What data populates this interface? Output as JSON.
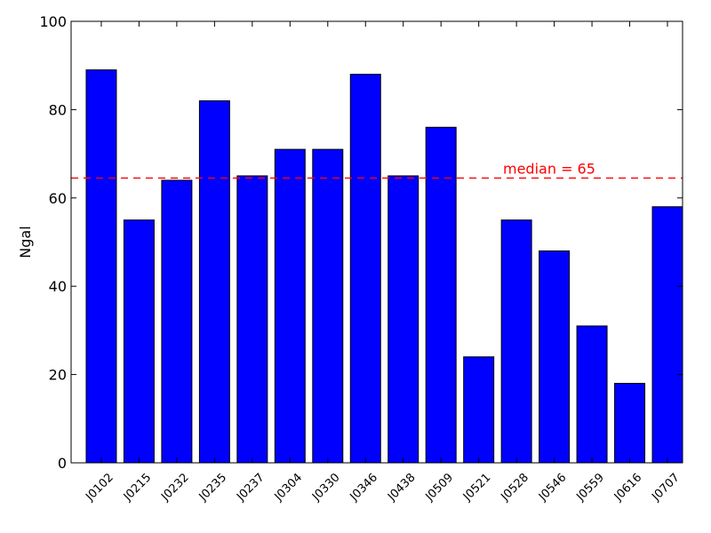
{
  "chart_data": {
    "type": "bar",
    "title": "",
    "xlabel": "",
    "ylabel": "Ngal",
    "ylim": [
      0,
      100
    ],
    "yticks": [
      0,
      20,
      40,
      60,
      80,
      100
    ],
    "categories": [
      "J0102",
      "J0215",
      "J0232",
      "J0235",
      "J0237",
      "J0304",
      "J0330",
      "J0346",
      "J0438",
      "J0509",
      "J0521",
      "J0528",
      "J0546",
      "J0559",
      "J0616",
      "J0707"
    ],
    "values": [
      89,
      55,
      64,
      82,
      65,
      71,
      71,
      88,
      65,
      76,
      24,
      55,
      48,
      31,
      18,
      58
    ],
    "bar_color": "#0000ff",
    "median": {
      "value": 64.5,
      "label": "median = 65",
      "color": "#ff0000",
      "style": "dashed"
    },
    "grid": false,
    "legend": "none"
  }
}
